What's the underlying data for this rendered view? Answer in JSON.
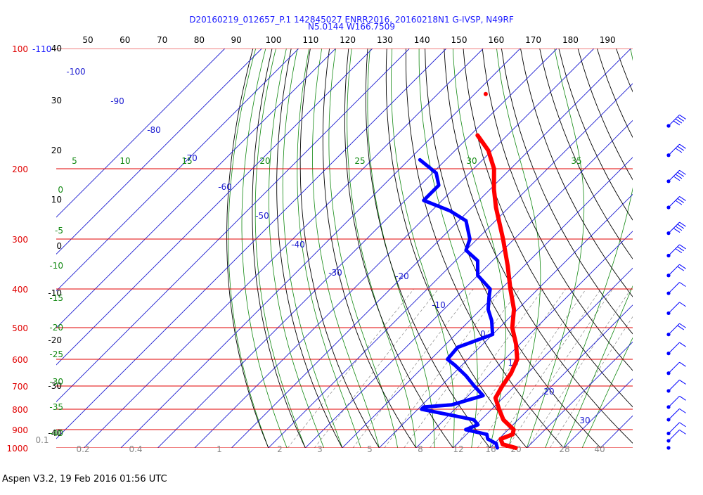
{
  "header": {
    "line1": "D20160219_012657_P.1 142845027 ENRR2016, 20160218N1 G-IVSP, N49RF",
    "line2": "N5.0144 W166.7509"
  },
  "footer": "Aspen V3.2, 19 Feb 2016  01:56 UTC",
  "chart_data": {
    "type": "skew-t",
    "title": "D20160219_012657_P.1 142845027 ENRR2016, 20160218N1 G-IVSP, N49RF",
    "subtitle": "N5.0144 W166.7509",
    "pressure_levels": [
      {
        "label": "100",
        "hPa": 100
      },
      {
        "label": "200",
        "hPa": 200
      },
      {
        "label": "300",
        "hPa": 300
      },
      {
        "label": "400",
        "hPa": 400
      },
      {
        "label": "500",
        "hPa": 500
      },
      {
        "label": "600",
        "hPa": 600
      },
      {
        "label": "700",
        "hPa": 700
      },
      {
        "label": "800",
        "hPa": 800
      },
      {
        "label": "900",
        "hPa": 900
      },
      {
        "label": "1000",
        "hPa": 1000
      }
    ],
    "top_axis_labels": [
      "50",
      "60",
      "70",
      "80",
      "90",
      "100",
      "110",
      "120",
      "130",
      "140",
      "150",
      "160",
      "170",
      "180",
      "190"
    ],
    "top_left_label": "-110",
    "left_axis_labels": [
      "40",
      "30",
      "20",
      "10",
      "0",
      "-10",
      "-20",
      "-30",
      "-40"
    ],
    "isotherm_labels": [
      "-100",
      "-90",
      "-80",
      "-70",
      "-60",
      "-50",
      "-40",
      "-30",
      "-20",
      "-10",
      "0",
      "10",
      "20",
      "30"
    ],
    "dry_adiabat_labels": [
      "0",
      "-5",
      "-10",
      "-15",
      "-20",
      "-25",
      "-30",
      "-35",
      "-40"
    ],
    "mixing_ratio_labels": [
      "0.1",
      "0.2",
      "0.4",
      "1",
      "2",
      "3",
      "5",
      "8",
      "12",
      "16",
      "20",
      "28",
      "40"
    ],
    "wet_adiabat_labels": [
      "5",
      "10",
      "15",
      "20",
      "25",
      "30",
      "35"
    ],
    "temperature_profile": [
      {
        "p": 1000,
        "t": 27
      },
      {
        "p": 980,
        "t": 22.5
      },
      {
        "p": 950,
        "t": 20.5
      },
      {
        "p": 925,
        "t": 22.5
      },
      {
        "p": 900,
        "t": 21.5
      },
      {
        "p": 850,
        "t": 16
      },
      {
        "p": 800,
        "t": 12
      },
      {
        "p": 750,
        "t": 8
      },
      {
        "p": 700,
        "t": 6.6
      },
      {
        "p": 650,
        "t": 5.5
      },
      {
        "p": 600,
        "t": 3.4
      },
      {
        "p": 550,
        "t": -1
      },
      {
        "p": 500,
        "t": -6.5
      },
      {
        "p": 450,
        "t": -11
      },
      {
        "p": 400,
        "t": -17.5
      },
      {
        "p": 350,
        "t": -24.5
      },
      {
        "p": 300,
        "t": -33
      },
      {
        "p": 250,
        "t": -43.5
      },
      {
        "p": 225,
        "t": -49
      },
      {
        "p": 200,
        "t": -54.5
      },
      {
        "p": 180,
        "t": -61
      },
      {
        "p": 165,
        "t": -68
      }
    ],
    "dewpoint_profile": [
      {
        "p": 1000,
        "t": 22
      },
      {
        "p": 975,
        "t": 20.5
      },
      {
        "p": 950,
        "t": 17
      },
      {
        "p": 925,
        "t": 15.5
      },
      {
        "p": 900,
        "t": 8.5
      },
      {
        "p": 875,
        "t": 10.5
      },
      {
        "p": 850,
        "t": 8
      },
      {
        "p": 800,
        "t": -9
      },
      {
        "p": 790,
        "t": -9
      },
      {
        "p": 780,
        "t": -2
      },
      {
        "p": 740,
        "t": 4
      },
      {
        "p": 700,
        "t": -1
      },
      {
        "p": 660,
        "t": -6
      },
      {
        "p": 620,
        "t": -12
      },
      {
        "p": 600,
        "t": -15.5
      },
      {
        "p": 560,
        "t": -16
      },
      {
        "p": 520,
        "t": -10
      },
      {
        "p": 480,
        "t": -14
      },
      {
        "p": 450,
        "t": -18
      },
      {
        "p": 420,
        "t": -21
      },
      {
        "p": 400,
        "t": -23
      },
      {
        "p": 370,
        "t": -30
      },
      {
        "p": 340,
        "t": -34
      },
      {
        "p": 320,
        "t": -40
      },
      {
        "p": 300,
        "t": -42
      },
      {
        "p": 270,
        "t": -48
      },
      {
        "p": 255,
        "t": -55
      },
      {
        "p": 240,
        "t": -65
      },
      {
        "p": 220,
        "t": -65
      },
      {
        "p": 205,
        "t": -69
      },
      {
        "p": 190,
        "t": -77
      }
    ],
    "isolated_temperature_point": {
      "p": 130,
      "t": -77
    },
    "wind_barbs": [
      {
        "p": 150,
        "speed_kt": 50
      },
      {
        "p": 185,
        "speed_kt": 30
      },
      {
        "p": 215,
        "speed_kt": 35
      },
      {
        "p": 250,
        "speed_kt": 30
      },
      {
        "p": 290,
        "speed_kt": 35
      },
      {
        "p": 330,
        "speed_kt": 30
      },
      {
        "p": 370,
        "speed_kt": 15
      },
      {
        "p": 410,
        "speed_kt": 10
      },
      {
        "p": 460,
        "speed_kt": 10
      },
      {
        "p": 520,
        "speed_kt": 15
      },
      {
        "p": 580,
        "speed_kt": 10
      },
      {
        "p": 650,
        "speed_kt": 10
      },
      {
        "p": 720,
        "speed_kt": 10
      },
      {
        "p": 790,
        "speed_kt": 10
      },
      {
        "p": 850,
        "speed_kt": 10
      },
      {
        "p": 920,
        "speed_kt": 10
      },
      {
        "p": 960,
        "speed_kt": 5
      },
      {
        "p": 1000,
        "speed_kt": 0
      }
    ],
    "colors": {
      "isobar": "#e00000",
      "isotherm": "#1a1ad0",
      "dry_adiabat": "#000000",
      "mixing_ratio": "#888888",
      "wet_adiabat": "#118811",
      "temperature": "#ff0000",
      "dewpoint": "#0000ff",
      "wind": "#0000ff"
    }
  }
}
